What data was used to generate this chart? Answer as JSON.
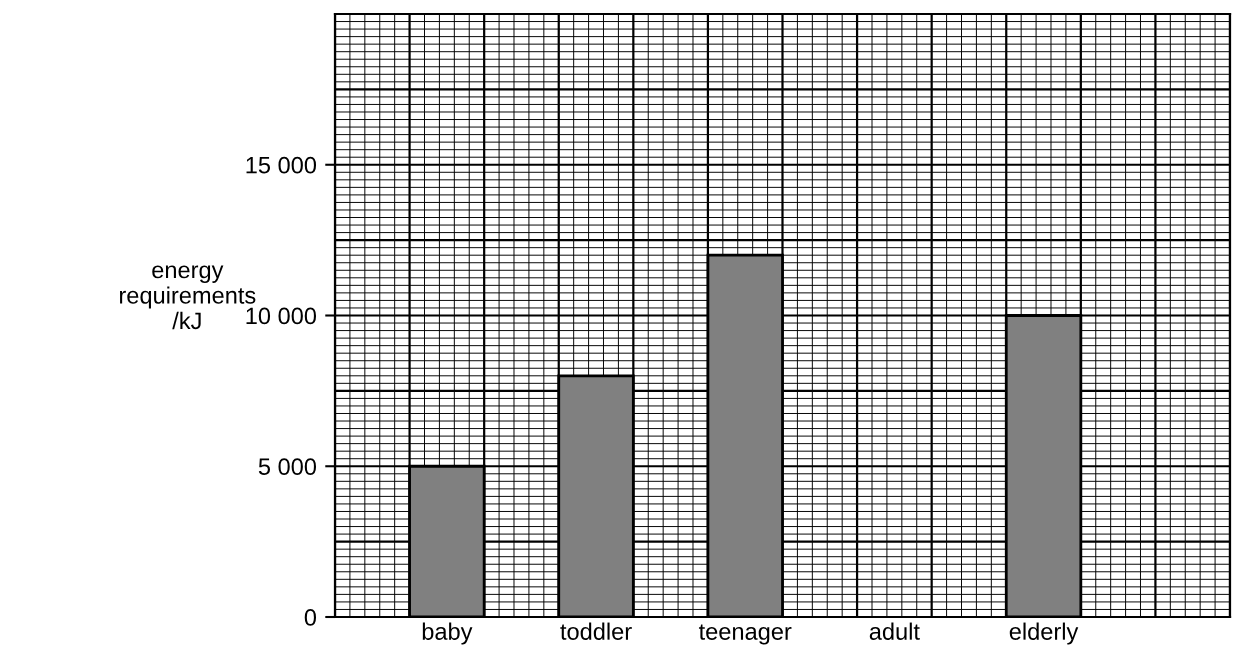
{
  "chart_data": {
    "type": "bar",
    "ylabel": "energy\nrequirements\n/kJ",
    "categories": [
      "baby",
      "toddler",
      "teenager",
      "adult",
      "elderly"
    ],
    "values": [
      5000,
      8000,
      12000,
      null,
      10000
    ],
    "color": "#808080",
    "ylim": [
      0,
      20000
    ],
    "yticks": [
      {
        "value": 0,
        "label": "0"
      },
      {
        "value": 2500,
        "label": null
      },
      {
        "value": 5000,
        "label": "5 000"
      },
      {
        "value": 7500,
        "label": null
      },
      {
        "value": 10000,
        "label": "10 000"
      },
      {
        "value": 12500,
        "label": null
      },
      {
        "value": 15000,
        "label": "15 000"
      },
      {
        "value": 17500,
        "label": null
      },
      {
        "value": 20000,
        "label": null
      }
    ],
    "grid": true
  }
}
